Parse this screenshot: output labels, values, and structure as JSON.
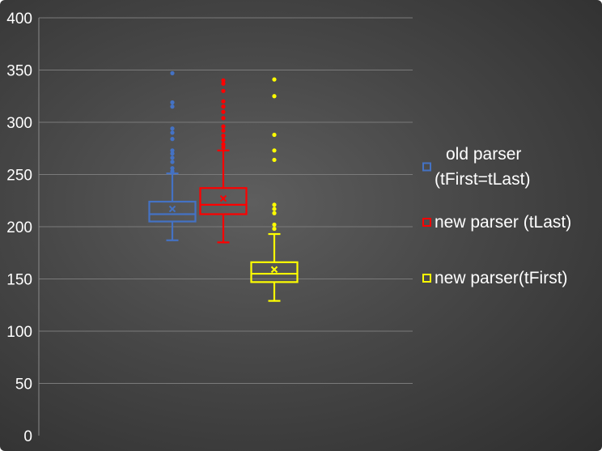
{
  "chart_data": {
    "type": "box",
    "title": "",
    "xlabel": "",
    "ylabel": "",
    "ylim": [
      0,
      400
    ],
    "y_ticks": [
      "0",
      "50",
      "100",
      "150",
      "200",
      "250",
      "300",
      "350",
      "400"
    ],
    "grid": true,
    "legend_position": "right",
    "series": [
      {
        "name": "old parser (tFirst=tLast)",
        "legend_lines": [
          "old parser",
          "(tFirst=tLast)"
        ],
        "color": "#4472C4",
        "whisker_low": 187,
        "q1": 205,
        "median": 212,
        "mean": 217,
        "q3": 224,
        "whisker_high": 251,
        "outliers": [
          347,
          319,
          315,
          294,
          290,
          284,
          273,
          270,
          266,
          262,
          256,
          253
        ]
      },
      {
        "name": "new parser (tLast)",
        "legend_lines": [
          "new parser (tLast)"
        ],
        "color": "#FF0000",
        "whisker_low": 185,
        "q1": 212,
        "median": 221,
        "mean": 227,
        "q3": 237,
        "whisker_high": 273,
        "outliers": [
          340,
          337,
          330,
          320,
          315,
          310,
          304,
          296,
          292,
          287,
          283,
          279,
          276
        ]
      },
      {
        "name": "new parser(tFirst)",
        "legend_lines": [
          "new parser(tFirst)"
        ],
        "color": "#FFFF00",
        "whisker_low": 129,
        "q1": 147,
        "median": 155,
        "mean": 159,
        "q3": 166,
        "whisker_high": 193,
        "outliers": [
          341,
          325,
          288,
          273,
          264,
          221,
          217,
          213,
          202,
          198
        ]
      }
    ]
  }
}
